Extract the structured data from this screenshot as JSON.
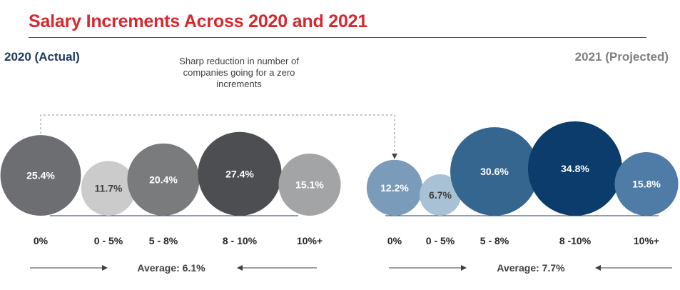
{
  "title": "Salary Increments Across 2020 and 2021",
  "annotation": "Sharp reduction in number of companies going for a zero increments",
  "colors": {
    "title": "#d7282f",
    "actual_label": "#1f3864",
    "projected_label": "#7f7f7f"
  },
  "chart_data": [
    {
      "type": "bubble",
      "title": "2020 (Actual)",
      "categories": [
        "0%",
        "0 - 5%",
        "5 - 8%",
        "8 - 10%",
        "10%+"
      ],
      "values": [
        25.4,
        11.7,
        20.4,
        27.4,
        15.1
      ],
      "value_labels": [
        "25.4%",
        "11.7%",
        "20.4%",
        "27.4%",
        "15.1%"
      ],
      "colors": [
        "#6d6e71",
        "#cbcbcb",
        "#7a7b7d",
        "#4d4e51",
        "#a3a4a6"
      ],
      "label_colors": [
        "#ffffff",
        "#404040",
        "#ffffff",
        "#ffffff",
        "#ffffff"
      ],
      "average_label": "Average: 6.1%"
    },
    {
      "type": "bubble",
      "title": "2021 (Projected)",
      "categories": [
        "0%",
        "0 - 5%",
        "5 - 8%",
        "8 -10%",
        "10%+"
      ],
      "values": [
        12.2,
        6.7,
        30.6,
        34.8,
        15.8
      ],
      "value_labels": [
        "12.2%",
        "6.7%",
        "30.6%",
        "34.8%",
        "15.8%"
      ],
      "colors": [
        "#7a9cba",
        "#a9c1d4",
        "#35668f",
        "#0b3c6b",
        "#4f7ca6"
      ],
      "label_colors": [
        "#ffffff",
        "#404040",
        "#ffffff",
        "#ffffff",
        "#ffffff"
      ],
      "average_label": "Average: 7.7%"
    }
  ]
}
